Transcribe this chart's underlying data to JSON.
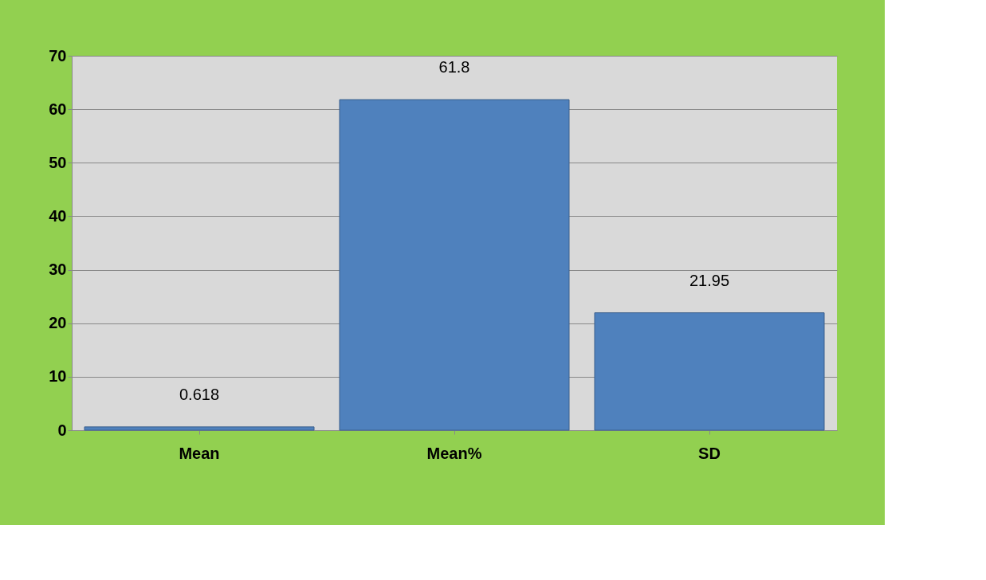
{
  "chart_data": {
    "type": "bar",
    "categories": [
      "Mean",
      "Mean%",
      "SD"
    ],
    "values": [
      0.618,
      61.8,
      21.95
    ],
    "color": "#4f81bd",
    "ylim": [
      0,
      70
    ],
    "yticks": [
      0,
      10,
      20,
      30,
      40,
      50,
      60,
      70
    ],
    "grid": "y",
    "data_labels": true
  }
}
